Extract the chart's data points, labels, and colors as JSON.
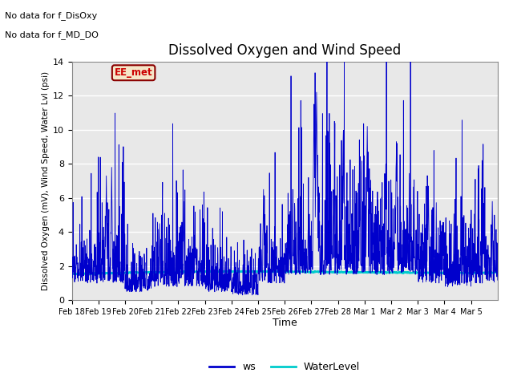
{
  "title": "Dissolved Oxygen and Wind Speed",
  "ylabel": "Dissolved Oxygen (mV), Wind Speed, Water Lvl (psi)",
  "xlabel": "Time",
  "text_line1": "No data for f_DisOxy",
  "text_line2": "No data for f_MD_DO",
  "ee_met_label": "EE_met",
  "ylim": [
    0,
    14
  ],
  "yticks": [
    0,
    2,
    4,
    6,
    8,
    10,
    12,
    14
  ],
  "xtick_labels": [
    "Feb 18",
    "Feb 19",
    "Feb 20",
    "Feb 21",
    "Feb 22",
    "Feb 23",
    "Feb 24",
    "Feb 25",
    "Feb 26",
    "Feb 27",
    "Feb 28",
    "Mar 1",
    "Mar 2",
    "Mar 3",
    "Mar 4",
    "Mar 5"
  ],
  "ws_color": "#0000cc",
  "water_color": "#00cccc",
  "bg_color": "#e8e8e8",
  "legend_ws": "ws",
  "legend_water": "WaterLevel",
  "grid_color": "white",
  "fig_bg": "#ffffff"
}
